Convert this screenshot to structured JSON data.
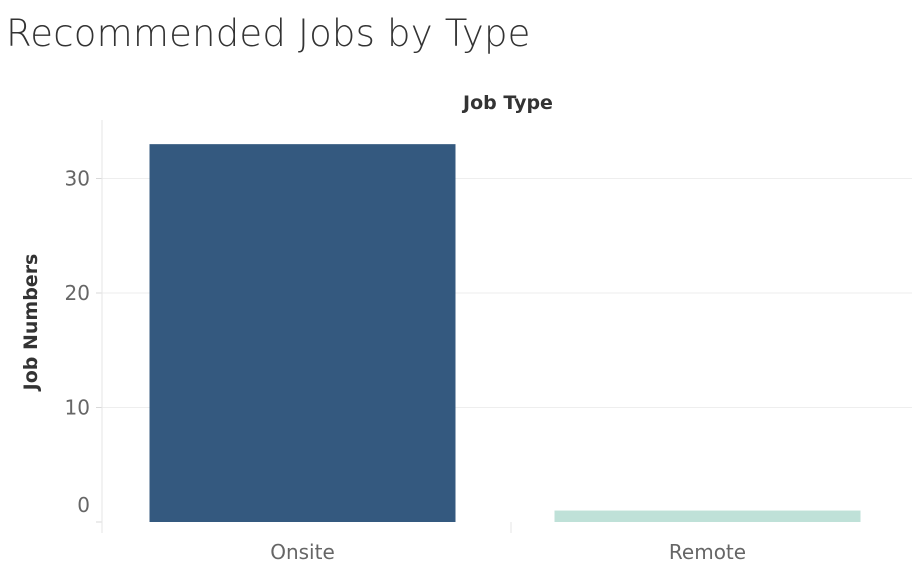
{
  "title": "Recommended Jobs by Type",
  "chart_data": {
    "type": "bar",
    "title": "Recommended Jobs by Type",
    "xlabel": "Job Type",
    "ylabel": "Job Numbers",
    "categories": [
      "Onsite",
      "Remote"
    ],
    "values": [
      33,
      1
    ],
    "colors": [
      "#34597f",
      "#bfe1d8"
    ],
    "ylim": [
      0,
      35
    ],
    "yticks": [
      0,
      10,
      20,
      30
    ],
    "grid": true,
    "legend": "none"
  }
}
